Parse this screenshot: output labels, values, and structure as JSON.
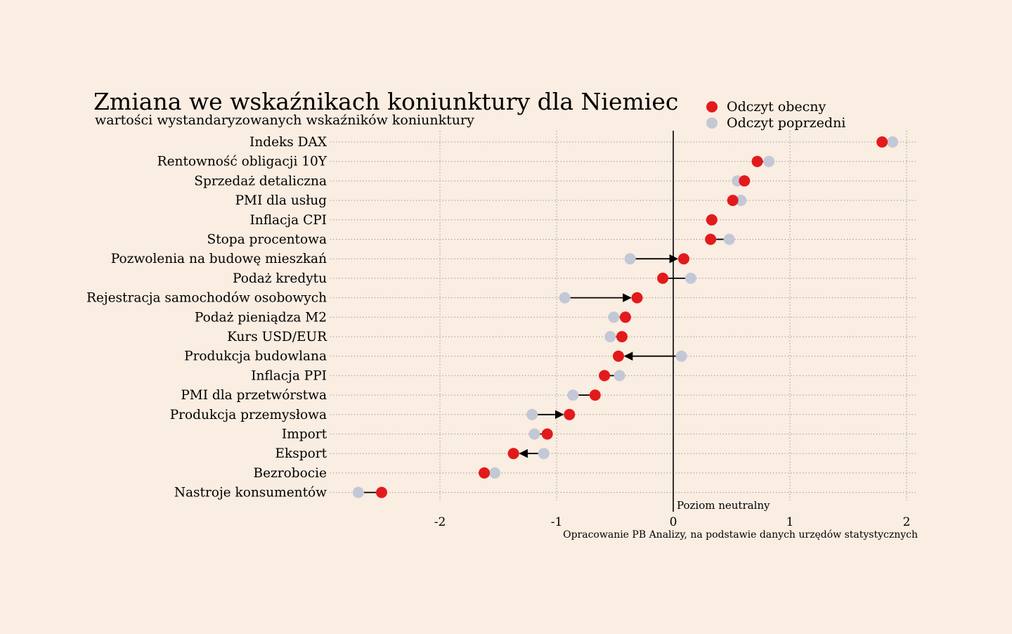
{
  "chart_data": {
    "type": "dumbbell",
    "title": "Zmiana we wskaźnikach koniunktury dla Niemiec",
    "subtitle": "wartości wystandaryzowanych wskaźników koniunktury",
    "source": "Opracowanie PB Analizy, na podstawie danych urzędów statystycznych",
    "neutral_label": "Poziom neutralny",
    "neutral_value": 0,
    "xlim": [
      -2.9,
      2.1
    ],
    "xticks": [
      -2,
      -1,
      0,
      1,
      2
    ],
    "xtick_labels": [
      "-2",
      "-1",
      "0",
      "1",
      "2"
    ],
    "grid": true,
    "legend_position": "top-right",
    "series": [
      {
        "name": "Odczyt obecny",
        "color": "#e31a1c"
      },
      {
        "name": "Odczyt poprzedni",
        "color": "#c3c8d6"
      }
    ],
    "categories": [
      "Indeks DAX",
      "Rentowność obligacji 10Y",
      "Sprzedaż detaliczna",
      "PMI dla usług",
      "Inflacja CPI",
      "Stopa procentowa",
      "Pozwolenia na budowę mieszkań",
      "Podaż kredytu",
      "Rejestracja samochodów osobowych",
      "Podaż pieniądza M2",
      "Kurs USD/EUR",
      "Produkcja budowlana",
      "Inflacja PPI",
      "PMI dla przetwórstwa",
      "Produkcja przemysłowa",
      "Import",
      "Eksport",
      "Bezrobocie",
      "Nastroje konsumentów"
    ],
    "current": [
      1.79,
      0.72,
      0.61,
      0.51,
      0.33,
      0.32,
      0.09,
      -0.09,
      -0.31,
      -0.41,
      -0.44,
      -0.47,
      -0.59,
      -0.67,
      -0.89,
      -1.08,
      -1.37,
      -1.62,
      -2.5
    ],
    "previous": [
      1.88,
      0.82,
      0.55,
      0.58,
      0.33,
      0.48,
      -0.37,
      0.15,
      -0.93,
      -0.51,
      -0.54,
      0.07,
      -0.46,
      -0.86,
      -1.21,
      -1.19,
      -1.11,
      -1.53,
      -2.7
    ],
    "arrows": [
      false,
      false,
      false,
      false,
      false,
      false,
      true,
      false,
      true,
      false,
      false,
      true,
      false,
      false,
      true,
      false,
      true,
      false,
      false
    ]
  }
}
